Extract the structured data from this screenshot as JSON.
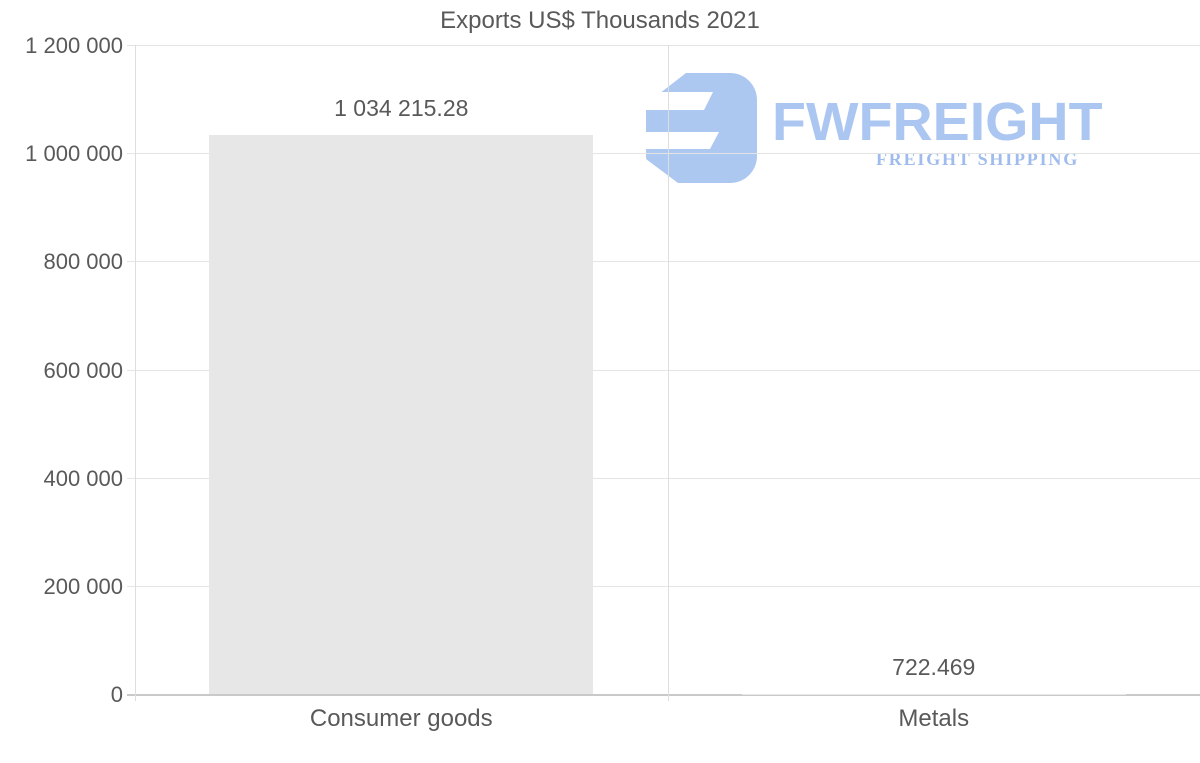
{
  "title": "Exports US$ Thousands 2021",
  "watermark": {
    "brand": "FWFREIGHT",
    "tagline": "FREIGHT SHIPPING",
    "logo_icon": "fwfreight-mark-icon",
    "mark_color": "#a8c5f0",
    "brand_color": "#a7c4f1",
    "tagline_color": "#9bb9ec"
  },
  "chart_data": {
    "type": "bar",
    "title": "Exports US$ Thousands 2021",
    "categories": [
      "Consumer goods",
      "Metals"
    ],
    "values": [
      1034215.28,
      722.469
    ],
    "value_labels": [
      "1 034 215.28",
      "722.469"
    ],
    "ylim": [
      0,
      1200000
    ],
    "ytick_step": 200000,
    "ytick_labels": [
      "0",
      "200 000",
      "400 000",
      "600 000",
      "800 000",
      "1 000 000",
      "1 200 000"
    ],
    "grid": true,
    "legend": false,
    "xlabel": "",
    "ylabel": "",
    "bar_color": "#e7e7e7",
    "text_color": "#595959",
    "grid_color": "#e4e4e4",
    "axis_line_color": "#dedede",
    "zero_line_color": "#c9c9c9"
  }
}
